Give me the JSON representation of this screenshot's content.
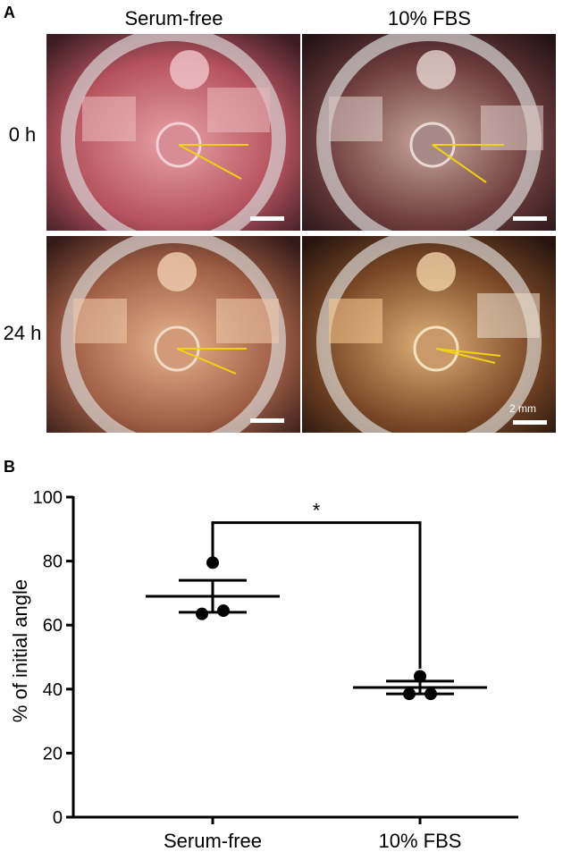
{
  "panel_a": {
    "letter": "A",
    "columns": [
      "Serum-free",
      "10% FBS"
    ],
    "rows": [
      "0 h",
      "24 h"
    ],
    "scale_label": "2 mm"
  },
  "panel_b": {
    "letter": "B"
  },
  "chart_data": {
    "type": "scatter",
    "ylabel": "% of initial angle",
    "xlabel": "",
    "ylim": [
      0,
      100
    ],
    "yticks": [
      0,
      20,
      40,
      60,
      80,
      100
    ],
    "categories": [
      "Serum-free",
      "10% FBS"
    ],
    "series": [
      {
        "category": "Serum-free",
        "points": [
          79.5,
          63.5,
          64.5
        ],
        "mean": 69,
        "sem_upper": 74,
        "sem_lower": 64
      },
      {
        "category": "10% FBS",
        "points": [
          44,
          38.5,
          38.5
        ],
        "mean": 40.5,
        "sem_upper": 42.5,
        "sem_lower": 38.5
      }
    ],
    "significance": {
      "label": "*",
      "between": [
        "Serum-free",
        "10% FBS"
      ]
    },
    "colors": {
      "points": "#000000",
      "lines": "#000000"
    }
  }
}
